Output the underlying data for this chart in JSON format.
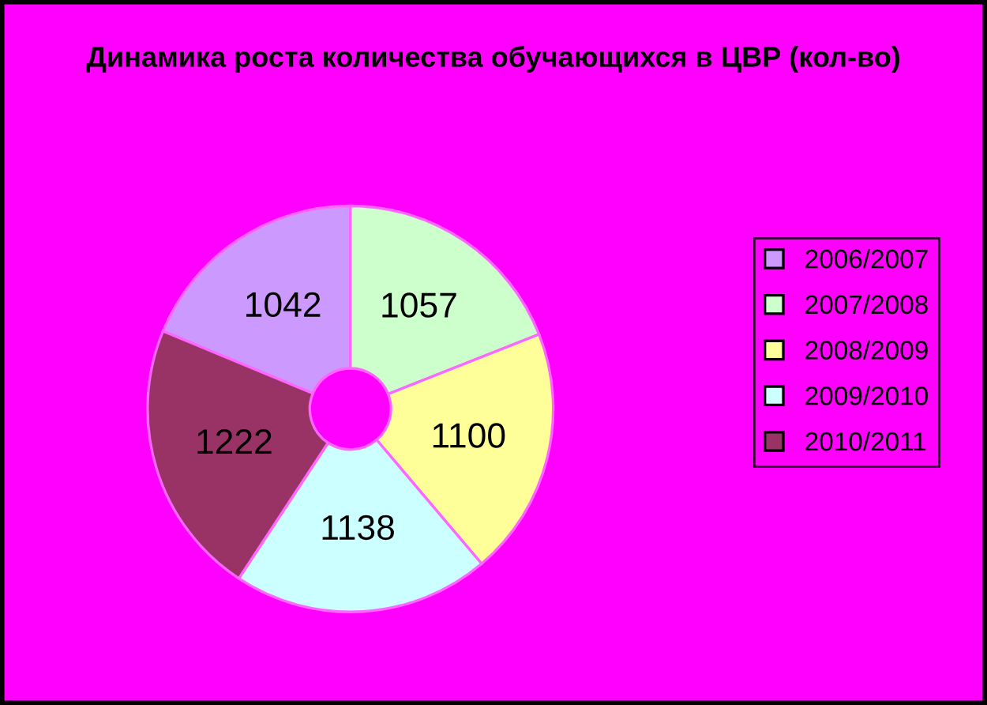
{
  "chart_data": {
    "type": "donut",
    "title": "Динамика роста количества обучающихся в ЦВР (кол-во)",
    "categories": [
      "2006/2007",
      "2007/2008",
      "2008/2009",
      "2009/2010",
      "2010/2011"
    ],
    "values": [
      1042,
      1057,
      1100,
      1138,
      1222
    ],
    "colors": [
      "#cc99ff",
      "#ccffcc",
      "#ffff99",
      "#ccffff",
      "#993366"
    ],
    "data_labels": true,
    "legend": "right"
  }
}
